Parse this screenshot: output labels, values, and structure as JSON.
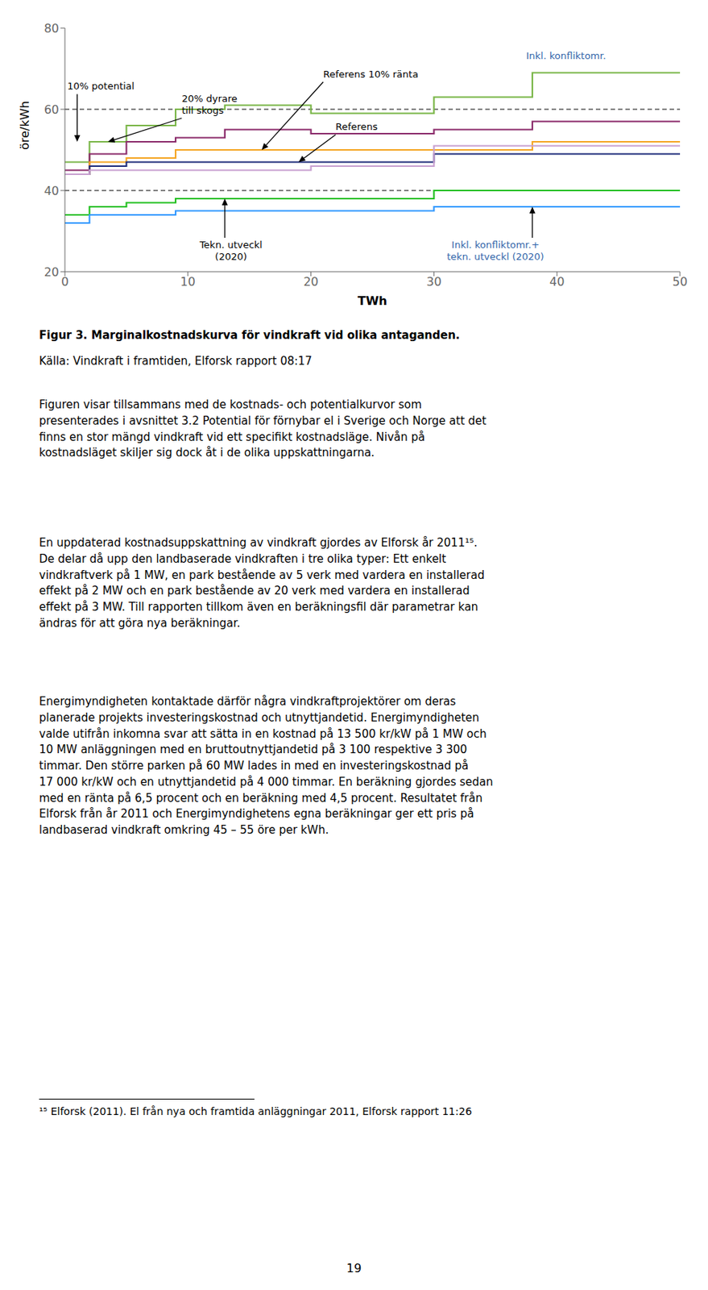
{
  "chart_data": {
    "type": "step",
    "xlabel": "TWh",
    "ylabel": "öre/kWh",
    "xlim": [
      0,
      50
    ],
    "ylim": [
      20,
      80
    ],
    "xticks": [
      0,
      10,
      20,
      30,
      40,
      50
    ],
    "yticks": [
      20,
      40,
      60,
      80
    ],
    "grid": false,
    "reference_lines": [
      60,
      40
    ],
    "series": [
      {
        "color": "#7ab648",
        "x": [
          0,
          2,
          2,
          5,
          5,
          9,
          9,
          13,
          13,
          20,
          20,
          30,
          30,
          38,
          38,
          50
        ],
        "values": [
          47,
          47,
          52,
          52,
          56,
          56,
          60,
          60,
          61,
          61,
          59,
          59,
          63,
          63,
          69,
          69
        ]
      },
      {
        "color": "#8b2b6b",
        "x": [
          0,
          2,
          2,
          5,
          5,
          9,
          9,
          13,
          13,
          20,
          20,
          30,
          30,
          38,
          38,
          50
        ],
        "values": [
          45,
          45,
          49,
          49,
          52,
          52,
          53,
          53,
          55,
          55,
          54,
          54,
          55,
          55,
          57,
          57
        ]
      },
      {
        "color": "#f5a623",
        "x": [
          0,
          2,
          2,
          5,
          5,
          9,
          9,
          20,
          20,
          30,
          30,
          38,
          38,
          50
        ],
        "values": [
          44,
          44,
          47,
          47,
          48,
          48,
          50,
          50,
          50,
          50,
          50,
          50,
          52,
          52
        ]
      },
      {
        "color": "#1f2d7b",
        "x": [
          0,
          2,
          2,
          5,
          5,
          20,
          20,
          30,
          30,
          38,
          38,
          50
        ],
        "values": [
          44,
          44,
          46,
          46,
          47,
          47,
          47,
          47,
          49,
          49,
          49,
          49
        ]
      },
      {
        "color": "#c8a0d0",
        "x": [
          0,
          2,
          2,
          5,
          5,
          20,
          20,
          30,
          30,
          50
        ],
        "values": [
          44,
          44,
          45,
          45,
          45,
          45,
          46,
          46,
          51,
          51
        ]
      },
      {
        "color": "#22c020",
        "x": [
          0,
          2,
          2,
          5,
          5,
          9,
          9,
          20,
          20,
          30,
          30,
          38,
          38,
          50
        ],
        "values": [
          34,
          34,
          36,
          36,
          37,
          37,
          38,
          38,
          38,
          38,
          40,
          40,
          40,
          40
        ]
      },
      {
        "color": "#3399ff",
        "x": [
          0,
          2,
          2,
          5,
          5,
          9,
          9,
          20,
          20,
          30,
          30,
          50
        ],
        "values": [
          32,
          32,
          34,
          34,
          34,
          34,
          35,
          35,
          35,
          35,
          36,
          36
        ]
      }
    ],
    "annotations": [
      {
        "text": "10% potential",
        "x": 1.0,
        "y": 52,
        "text_x": 0.2,
        "text_y": 67,
        "color": "#000000",
        "align": "left"
      },
      {
        "text": "20% dyrare\ntill skogs",
        "x": 3.5,
        "y": 52,
        "text_x": 9.5,
        "text_y": 64,
        "color": "#000000",
        "align": "left"
      },
      {
        "text": "Referens 10% ränta",
        "x": 16,
        "y": 50,
        "text_x": 21,
        "text_y": 70,
        "color": "#000000",
        "align": "left"
      },
      {
        "text": "Inkl. konfliktomr.",
        "text_x": 37.5,
        "text_y": 73,
        "color": "#3366aa",
        "align": "left"
      },
      {
        "text": "Referens",
        "x": 19,
        "y": 47,
        "text_x": 22,
        "text_y": 57,
        "color": "#000000",
        "align": "left"
      },
      {
        "text": "Tekn. utveckl\n(2020)",
        "x": 13,
        "y": 38,
        "text_x": 13.5,
        "text_y": 28,
        "color": "#000000",
        "align": "center"
      },
      {
        "text": "Inkl. konfliktomr.+\ntekn. utveckl (2020)",
        "x": 38,
        "y": 36,
        "text_x": 35,
        "text_y": 28,
        "color": "#3366aa",
        "align": "center"
      }
    ]
  },
  "caption": "Figur 3. Marginalkostnadskurva för vindkraft vid olika antaganden.",
  "source": "Källa: Vindkraft i framtiden, Elforsk rapport 08:17",
  "paragraphs": [
    "Figuren visar tillsammans med de kostnads- och potentialkurvor som\npresenterades i avsnittet 3.2 ​Potential för förnybar el i Sverige och Norge​ att det\nfinns en stor mängd vindkraft vid ett specifikt kostnadsläge. Nivån på\nkostnadsläget skiljer sig dock åt i de olika uppskattningarna.",
    "En uppdaterad kostnadsuppskattning av vindkraft gjordes av Elforsk år 2011¹⁵.\nDe delar då upp den landbaserade vindkraften i tre olika typer: Ett enkelt\nvindkraftverk på 1 MW, en park bestående av 5 verk med vardera en installerad\neffekt på 2 MW och en park bestående av 20 verk med vardera en installerad\neffekt på 3 MW. Till rapporten tillkom även en beräkningsfil där parametrar kan\nändras för att göra nya beräkningar.",
    "Energimyndigheten kontaktade därför några vindkraftprojektörer om deras\nplanerade projekts investeringskostnad och utnyttjandetid. Energimyndigheten\nvalde utifrån inkomna svar att sätta in en kostnad på 13 500 kr/kW på 1 MW och\n10 MW anläggningen med en bruttoutnyttjandetid på 3 100 respektive 3 300\ntimmar. Den större parken på 60 MW lades in med en investeringskostnad på\n17 000 kr/kW och en utnyttjandetid på 4 000 timmar. En beräkning gjordes sedan\nmed en ränta på 6,5 procent och en beräkning med 4,5 procent. Resultatet från\nElforsk från år 2011 och Energimyndighetens egna beräkningar ger ett pris på\nlandbaserad vindkraft omkring 45 – 55 öre per kWh."
  ],
  "footnote": "¹⁵ Elforsk (2011). El från nya och framtida anläggningar 2011, Elforsk rapport 11:26",
  "page_number": "19"
}
